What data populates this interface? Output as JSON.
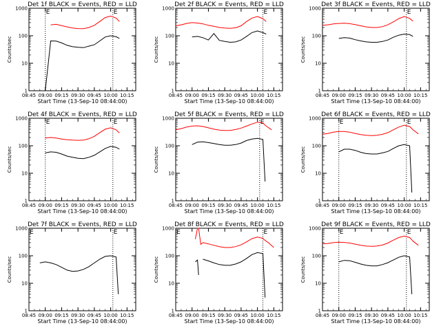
{
  "colors": {
    "events": "#000000",
    "lld": "#ff0000",
    "frame": "#000000",
    "background": "#ffffff"
  },
  "chart_data": [
    {
      "type": "line",
      "title": "Det 1f BLACK = Events, RED = LLD",
      "xlabel": "Start Time (13-Sep-10 08:44:00)",
      "ylabel": "Counts/sec",
      "ylog": true,
      "ylim": [
        1,
        1000
      ],
      "x_tick_labels": [
        "08:45",
        "09:00",
        "09:15",
        "09:30",
        "09:45",
        "10:00",
        "10:15"
      ],
      "y_tick_labels": [
        "1",
        "10",
        "100",
        "1000"
      ],
      "markers": [
        {
          "label": "E",
          "x": "09:00"
        },
        {
          "label": "E",
          "x": "10:02"
        }
      ],
      "x": [
        "09:00",
        "09:05",
        "09:10",
        "09:15",
        "09:20",
        "09:25",
        "09:30",
        "09:35",
        "09:40",
        "09:45",
        "09:50",
        "09:55",
        "10:00",
        "10:05",
        "10:08"
      ],
      "series": [
        {
          "name": "Events",
          "color": "black",
          "values": [
            1,
            65,
            64,
            55,
            45,
            40,
            38,
            37,
            42,
            47,
            65,
            90,
            100,
            92,
            80
          ]
        },
        {
          "name": "LLD",
          "color": "red",
          "values": [
            null,
            250,
            260,
            235,
            210,
            190,
            182,
            180,
            200,
            240,
            330,
            460,
            520,
            440,
            330
          ]
        }
      ]
    },
    {
      "type": "line",
      "title": "Det 2f BLACK = Events, RED = LLD",
      "xlabel": "Start Time (13-Sep-10 08:44:00)",
      "ylabel": "Counts/sec",
      "ylog": true,
      "ylim": [
        1,
        1000
      ],
      "x_tick_labels": [
        "08:45",
        "09:00",
        "09:15",
        "09:30",
        "09:45",
        "10:00",
        "10:15"
      ],
      "y_tick_labels": [
        "1",
        "10",
        "100",
        "1000"
      ],
      "markers": [
        {
          "label": "E",
          "x": "10:05"
        }
      ],
      "x": [
        "08:45",
        "08:50",
        "08:55",
        "09:00",
        "09:05",
        "09:10",
        "09:15",
        "09:20",
        "09:25",
        "09:30",
        "09:35",
        "09:40",
        "09:45",
        "09:50",
        "09:55",
        "10:00",
        "10:05",
        "10:08"
      ],
      "series": [
        {
          "name": "Events",
          "color": "black",
          "values": [
            null,
            null,
            null,
            90,
            95,
            85,
            70,
            120,
            68,
            62,
            58,
            60,
            70,
            95,
            130,
            150,
            130,
            115
          ]
        },
        {
          "name": "LLD",
          "color": "red",
          "values": [
            230,
            250,
            280,
            300,
            290,
            270,
            240,
            220,
            200,
            190,
            185,
            195,
            230,
            330,
            440,
            500,
            420,
            330
          ]
        }
      ]
    },
    {
      "type": "line",
      "title": "Det 3f BLACK = Events, RED = LLD",
      "xlabel": "Start Time (13-Sep-10 08:44:00)",
      "ylabel": "Counts/sec",
      "ylog": true,
      "ylim": [
        1,
        1000
      ],
      "x_tick_labels": [
        "08:45",
        "09:00",
        "09:15",
        "09:30",
        "09:45",
        "10:00",
        "10:15"
      ],
      "y_tick_labels": [
        "1",
        "10",
        "100",
        "1000"
      ],
      "markers": [
        {
          "label": "E",
          "x": "10:02"
        }
      ],
      "x": [
        "08:45",
        "08:50",
        "08:55",
        "09:00",
        "09:05",
        "09:10",
        "09:15",
        "09:20",
        "09:25",
        "09:30",
        "09:35",
        "09:40",
        "09:45",
        "09:50",
        "09:55",
        "10:00",
        "10:05",
        "10:08"
      ],
      "series": [
        {
          "name": "Events",
          "color": "black",
          "values": [
            null,
            null,
            null,
            80,
            85,
            82,
            72,
            65,
            60,
            58,
            58,
            62,
            70,
            88,
            105,
            115,
            110,
            95
          ]
        },
        {
          "name": "LLD",
          "color": "red",
          "values": [
            240,
            250,
            270,
            280,
            285,
            275,
            255,
            230,
            210,
            200,
            200,
            215,
            250,
            320,
            420,
            500,
            430,
            340
          ]
        }
      ]
    },
    {
      "type": "line",
      "title": "Det 4f BLACK = Events, RED = LLD",
      "xlabel": "Start Time (13-Sep-10 08:44:00)",
      "ylabel": "Counts/sec",
      "ylog": true,
      "ylim": [
        1,
        1000
      ],
      "x_tick_labels": [
        "08:45",
        "09:00",
        "09:15",
        "09:30",
        "09:45",
        "10:00",
        "10:15"
      ],
      "y_tick_labels": [
        "1",
        "10",
        "100",
        "1000"
      ],
      "markers": [
        {
          "label": "E",
          "x": "09:00"
        },
        {
          "label": "E",
          "x": "10:02"
        }
      ],
      "x": [
        "09:00",
        "09:05",
        "09:10",
        "09:15",
        "09:20",
        "09:25",
        "09:30",
        "09:35",
        "09:40",
        "09:45",
        "09:50",
        "09:55",
        "10:00",
        "10:05",
        "10:08"
      ],
      "series": [
        {
          "name": "Events",
          "color": "black",
          "values": [
            55,
            60,
            58,
            50,
            42,
            38,
            35,
            34,
            38,
            45,
            60,
            80,
            95,
            88,
            75
          ]
        },
        {
          "name": "LLD",
          "color": "red",
          "values": [
            190,
            200,
            190,
            175,
            165,
            160,
            158,
            160,
            180,
            220,
            300,
            400,
            450,
            380,
            290
          ]
        }
      ]
    },
    {
      "type": "line",
      "title": "Det 5f BLACK = Events, RED = LLD",
      "xlabel": "Start Time (13-Sep-10 08:44:00)",
      "ylabel": "Counts/sec",
      "ylog": true,
      "ylim": [
        1,
        1000
      ],
      "x_tick_labels": [
        "08:45",
        "09:00",
        "09:15",
        "09:30",
        "09:45",
        "10:00",
        "10:15"
      ],
      "y_tick_labels": [
        "1",
        "10",
        "100",
        "1000"
      ],
      "markers": [
        {
          "label": "E",
          "x": "10:02"
        }
      ],
      "x": [
        "08:45",
        "08:50",
        "08:55",
        "09:00",
        "09:05",
        "09:10",
        "09:15",
        "09:20",
        "09:25",
        "09:30",
        "09:35",
        "09:40",
        "09:45",
        "09:50",
        "09:55",
        "10:00",
        "10:05",
        "10:07",
        "10:08",
        "10:13"
      ],
      "series": [
        {
          "name": "Events",
          "color": "black",
          "values": [
            null,
            null,
            null,
            110,
            135,
            140,
            130,
            120,
            110,
            105,
            105,
            110,
            125,
            155,
            175,
            185,
            170,
            5,
            null,
            null
          ]
        },
        {
          "name": "LLD",
          "color": "red",
          "values": [
            380,
            420,
            480,
            520,
            530,
            500,
            450,
            400,
            370,
            360,
            360,
            390,
            440,
            520,
            620,
            720,
            680,
            560,
            520,
            380
          ]
        }
      ]
    },
    {
      "type": "line",
      "title": "Det 6f BLACK = Events, RED = LLD",
      "xlabel": "Start Time (13-Sep-10 08:44:00)",
      "ylabel": "Counts/sec",
      "ylog": true,
      "ylim": [
        1,
        1000
      ],
      "x_tick_labels": [
        "08:45",
        "09:00",
        "09:15",
        "09:30",
        "09:45",
        "10:00",
        "10:15"
      ],
      "y_tick_labels": [
        "1",
        "10",
        "100",
        "1000"
      ],
      "markers": [
        {
          "label": "E",
          "x": "09:00"
        },
        {
          "label": "E",
          "x": "10:02"
        }
      ],
      "x": [
        "08:45",
        "08:50",
        "08:55",
        "09:00",
        "09:05",
        "09:10",
        "09:15",
        "09:20",
        "09:25",
        "09:30",
        "09:35",
        "09:40",
        "09:45",
        "09:50",
        "09:55",
        "10:00",
        "10:05",
        "10:07",
        "10:08",
        "10:13"
      ],
      "series": [
        {
          "name": "Events",
          "color": "black",
          "values": [
            null,
            null,
            null,
            60,
            75,
            75,
            68,
            58,
            52,
            50,
            50,
            55,
            62,
            80,
            100,
            110,
            100,
            2,
            null,
            null
          ]
        },
        {
          "name": "LLD",
          "color": "red",
          "values": [
            260,
            280,
            310,
            330,
            330,
            310,
            280,
            255,
            240,
            235,
            240,
            260,
            300,
            380,
            480,
            560,
            500,
            420,
            380,
            270
          ]
        }
      ]
    },
    {
      "type": "line",
      "title": "Det 7f BLACK = Events, RED = LLD",
      "xlabel": "Start Time (13-Sep-10 08:44:00)",
      "ylabel": "Counts/sec",
      "ylog": true,
      "ylim": [
        1,
        1000
      ],
      "x_tick_labels": [
        "08:45",
        "09:00",
        "09:15",
        "09:30",
        "09:45",
        "10:00",
        "10:15"
      ],
      "y_tick_labels": [
        "1",
        "10",
        "100",
        "1000"
      ],
      "markers": [
        {
          "label": "E",
          "x": "08:45"
        },
        {
          "label": "E",
          "x": "10:02"
        }
      ],
      "x": [
        "08:55",
        "09:00",
        "09:05",
        "09:10",
        "09:15",
        "09:20",
        "09:25",
        "09:30",
        "09:35",
        "09:40",
        "09:45",
        "09:50",
        "09:55",
        "10:00",
        "10:05",
        "10:07"
      ],
      "series": [
        {
          "name": "Events",
          "color": "black",
          "values": [
            55,
            60,
            55,
            48,
            38,
            30,
            27,
            28,
            32,
            40,
            55,
            75,
            95,
            100,
            90,
            4
          ]
        }
      ]
    },
    {
      "type": "line",
      "title": "Det 8f BLACK = Events, RED = LLD",
      "xlabel": "Start Time (13-Sep-10 08:44:00)",
      "ylabel": "Counts/sec",
      "ylog": true,
      "ylim": [
        1,
        1000
      ],
      "x_tick_labels": [
        "08:45",
        "09:00",
        "09:15",
        "09:30",
        "09:45",
        "10:00",
        "10:15"
      ],
      "y_tick_labels": [
        "1",
        "10",
        "100",
        "1000"
      ],
      "markers": [
        {
          "label": "E",
          "x": "08:45"
        },
        {
          "label": "E",
          "x": "10:05"
        }
      ],
      "x": [
        "09:03",
        "09:05",
        "09:06",
        "09:08",
        "09:10",
        "09:15",
        "09:20",
        "09:25",
        "09:30",
        "09:35",
        "09:40",
        "09:45",
        "09:50",
        "09:55",
        "10:00",
        "10:05",
        "10:07",
        "10:10",
        "10:15"
      ],
      "series": [
        {
          "name": "Events",
          "color": "black",
          "values": [
            60,
            70,
            20,
            null,
            75,
            65,
            55,
            48,
            45,
            45,
            50,
            60,
            80,
            110,
            130,
            120,
            3,
            null,
            null
          ]
        },
        {
          "name": "LLD",
          "color": "red",
          "values": [
            400,
            1000,
            1000,
            260,
            300,
            270,
            240,
            215,
            200,
            200,
            215,
            250,
            320,
            420,
            480,
            430,
            360,
            300,
            200
          ]
        }
      ]
    },
    {
      "type": "line",
      "title": "Det 9f BLACK = Events, RED = LLD",
      "xlabel": "Start Time (13-Sep-10 08:44:00)",
      "ylabel": "Counts/sec",
      "ylog": true,
      "ylim": [
        1,
        1000
      ],
      "x_tick_labels": [
        "08:45",
        "09:00",
        "09:15",
        "09:30",
        "09:45",
        "10:00",
        "10:15"
      ],
      "y_tick_labels": [
        "1",
        "10",
        "100",
        "1000"
      ],
      "markers": [
        {
          "label": "E",
          "x": "09:00"
        },
        {
          "label": "E",
          "x": "10:02"
        }
      ],
      "x": [
        "08:45",
        "08:50",
        "08:55",
        "09:00",
        "09:05",
        "09:10",
        "09:15",
        "09:20",
        "09:25",
        "09:30",
        "09:35",
        "09:40",
        "09:45",
        "09:50",
        "09:55",
        "10:00",
        "10:05",
        "10:07",
        "10:08",
        "10:13"
      ],
      "series": [
        {
          "name": "Events",
          "color": "black",
          "values": [
            null,
            null,
            null,
            60,
            68,
            66,
            58,
            50,
            45,
            43,
            43,
            48,
            56,
            70,
            88,
            100,
            90,
            4,
            null,
            null
          ]
        },
        {
          "name": "LLD",
          "color": "red",
          "values": [
            270,
            280,
            300,
            310,
            305,
            290,
            265,
            240,
            225,
            220,
            225,
            245,
            290,
            370,
            460,
            520,
            460,
            380,
            340,
            240
          ]
        }
      ]
    }
  ]
}
